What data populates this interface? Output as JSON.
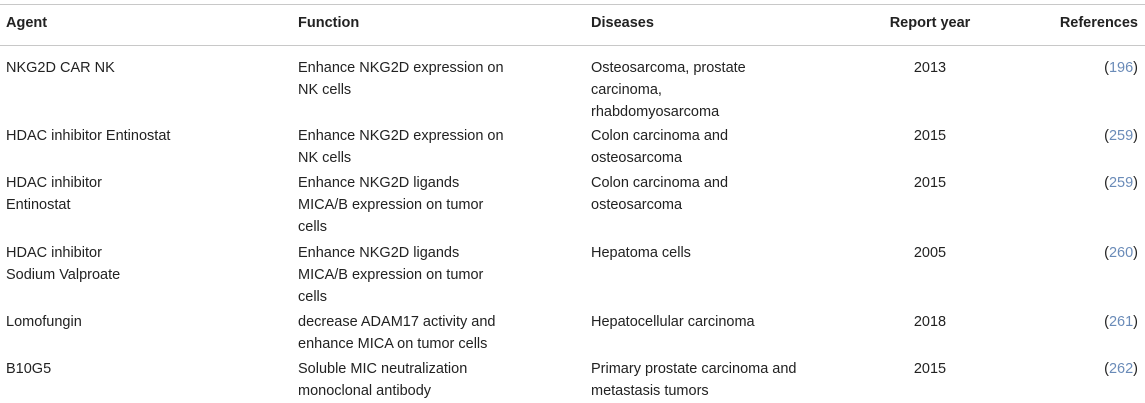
{
  "columns": {
    "agent": "Agent",
    "function": "Function",
    "diseases": "Diseases",
    "year": "Report year",
    "references": "References"
  },
  "rows": [
    {
      "agent": "NKG2D CAR NK",
      "function": "Enhance NKG2D expression on\nNK cells",
      "diseases": "Osteosarcoma, prostate\ncarcinoma,\nrhabdomyosarcoma",
      "year": "2013",
      "ref": "196"
    },
    {
      "agent": "HDAC inhibitor Entinostat",
      "function": "Enhance NKG2D expression on\nNK cells",
      "diseases": "Colon carcinoma and\nosteosarcoma",
      "year": "2015",
      "ref": "259"
    },
    {
      "agent": "HDAC inhibitor\nEntinostat",
      "function": "Enhance NKG2D ligands\nMICA/B expression on tumor\ncells",
      "diseases": "Colon carcinoma and\nosteosarcoma",
      "year": "2015",
      "ref": "259"
    },
    {
      "agent": "HDAC inhibitor\nSodium Valproate",
      "function": "Enhance NKG2D ligands\nMICA/B expression on tumor\ncells",
      "diseases": "Hepatoma cells",
      "year": "2005",
      "ref": "260"
    },
    {
      "agent": "Lomofungin",
      "function": "decrease ADAM17 activity and\nenhance MICA on tumor cells",
      "diseases": "Hepatocellular carcinoma",
      "year": "2018",
      "ref": "261"
    },
    {
      "agent": "B10G5",
      "function": "Soluble MIC neutralization\nmonoclonal antibody",
      "diseases": "Primary prostate carcinoma and\nmetastasis tumors",
      "year": "2015",
      "ref": "262"
    }
  ]
}
